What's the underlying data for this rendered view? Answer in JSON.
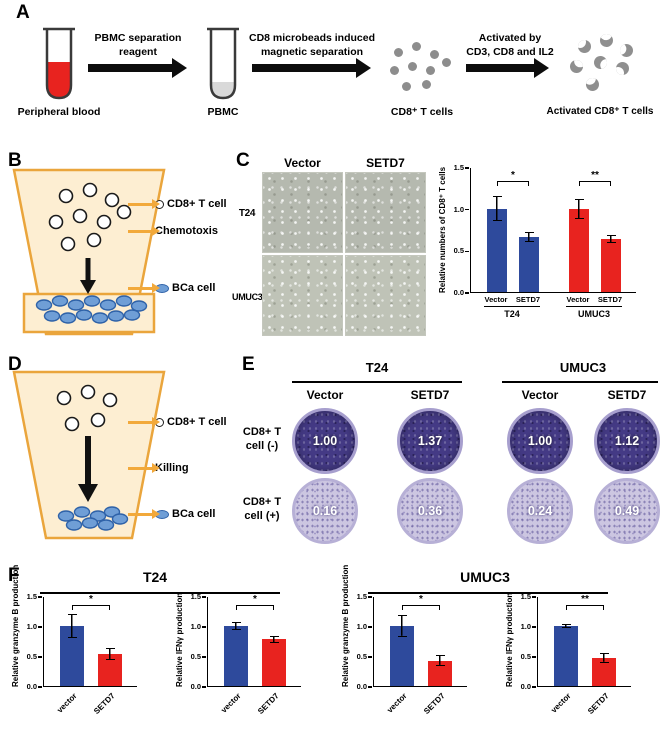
{
  "panel_a": {
    "label": "A",
    "caption_blood": "Peripheral blood",
    "arrow1": [
      "PBMC separation",
      "reagent"
    ],
    "caption_pbmc": "PBMC",
    "arrow2": [
      "CD8 microbeads induced",
      "magnetic separation"
    ],
    "caption_cd8": "CD8⁺ T cells",
    "arrow3": [
      "Activated by",
      "CD3, CD8 and IL2"
    ],
    "caption_activated": "Activated CD8⁺ T cells"
  },
  "panel_b": {
    "label": "B",
    "label_tcell": "CD8+ T cell",
    "label_process": "Chemotoxis",
    "label_bca": "BCa cell"
  },
  "panel_c": {
    "label": "C",
    "col_vector": "Vector",
    "col_setd7": "SETD7",
    "row_t24": "T24",
    "row_umuc3": "UMUC3"
  },
  "panel_d": {
    "label": "D",
    "label_tcell": "CD8+ T cell",
    "label_process": "Killing",
    "label_bca": "BCa cell"
  },
  "panel_e": {
    "label": "E",
    "group_t24": "T24",
    "group_umuc3": "UMUC3",
    "cols": [
      "Vector",
      "SETD7",
      "Vector",
      "SETD7"
    ],
    "row_minus": [
      "CD8+ T",
      "cell (-)"
    ],
    "row_plus": [
      "CD8+ T",
      "cell (+)"
    ],
    "values_minus": [
      "1.00",
      "1.37",
      "1.00",
      "1.12"
    ],
    "values_plus": [
      "0.16",
      "0.36",
      "0.24",
      "0.49"
    ]
  },
  "panel_f": {
    "label": "F",
    "group_t24": "T24",
    "group_umuc3": "UMUC3"
  },
  "chart_data": {
    "c": {
      "type": "bar",
      "ylabel": "Relative numbers of CD8⁺ T cells",
      "ylim": 1.5,
      "yticks": [
        0,
        0.5,
        1.0,
        1.5
      ],
      "groups": [
        {
          "label": "T24",
          "sig": "*",
          "bars": [
            {
              "label": "Vector",
              "value": 1.0,
              "err": 0.15,
              "color": "#2e4a9c"
            },
            {
              "label": "SETD7",
              "value": 0.66,
              "err": 0.06,
              "color": "#2e4a9c"
            }
          ]
        },
        {
          "label": "UMUC3",
          "sig": "**",
          "bars": [
            {
              "label": "Vector",
              "value": 1.0,
              "err": 0.12,
              "color": "#e8231f"
            },
            {
              "label": "SETD7",
              "value": 0.64,
              "err": 0.05,
              "color": "#e8231f"
            }
          ]
        }
      ]
    },
    "f": [
      {
        "type": "bar",
        "ylabel": "Relative granzyme B production",
        "ylim": 1.5,
        "yticks": [
          0,
          0.5,
          1.0,
          1.5
        ],
        "groups": [
          {
            "sig": "*",
            "bars": [
              {
                "label": "vector",
                "value": 1.0,
                "err": 0.2,
                "color": "#2e4a9c"
              },
              {
                "label": "SETD7",
                "value": 0.54,
                "err": 0.1,
                "color": "#e8231f"
              }
            ]
          }
        ]
      },
      {
        "type": "bar",
        "ylabel": "Relative IFNγ production",
        "ylim": 1.5,
        "yticks": [
          0,
          0.5,
          1.0,
          1.5
        ],
        "groups": [
          {
            "sig": "*",
            "bars": [
              {
                "label": "vector",
                "value": 1.0,
                "err": 0.07,
                "color": "#2e4a9c"
              },
              {
                "label": "SETD7",
                "value": 0.78,
                "err": 0.06,
                "color": "#e8231f"
              }
            ]
          }
        ]
      },
      {
        "type": "bar",
        "ylabel": "Relative granzyme B production",
        "ylim": 1.5,
        "yticks": [
          0,
          0.5,
          1.0,
          1.5
        ],
        "groups": [
          {
            "sig": "*",
            "bars": [
              {
                "label": "vector",
                "value": 1.0,
                "err": 0.18,
                "color": "#2e4a9c"
              },
              {
                "label": "SETD7",
                "value": 0.42,
                "err": 0.09,
                "color": "#e8231f"
              }
            ]
          }
        ]
      },
      {
        "type": "bar",
        "ylabel": "Relative IFNγ production",
        "ylim": 1.5,
        "yticks": [
          0,
          0.5,
          1.0,
          1.5
        ],
        "groups": [
          {
            "sig": "**",
            "bars": [
              {
                "label": "vector",
                "value": 1.0,
                "err": 0.04,
                "color": "#2e4a9c"
              },
              {
                "label": "SETD7",
                "value": 0.47,
                "err": 0.08,
                "color": "#e8231f"
              }
            ]
          }
        ]
      }
    ]
  }
}
